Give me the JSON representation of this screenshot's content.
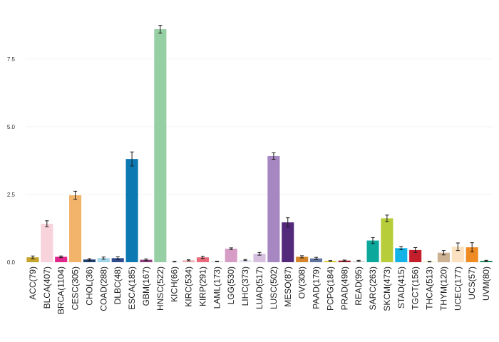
{
  "chart_data": {
    "type": "bar",
    "categories": [
      "ACC(79)",
      "BLCA(407)",
      "BRCA(1104)",
      "CESC(305)",
      "CHOL(36)",
      "COAD(288)",
      "DLBC(48)",
      "ESCA(185)",
      "GBM(167)",
      "HNSC(522)",
      "KICH(66)",
      "KIRC(534)",
      "KIRP(291)",
      "LAML(173)",
      "LGG(530)",
      "LIHC(373)",
      "LUAD(517)",
      "LUSC(502)",
      "MESO(87)",
      "OV(308)",
      "PAAD(179)",
      "PCPG(184)",
      "PRAD(498)",
      "READ(95)",
      "SARC(263)",
      "SKCM(473)",
      "STAD(415)",
      "TGCT(156)",
      "THCA(513)",
      "THYM(120)",
      "UCEC(177)",
      "UCS(57)",
      "UVM(80)"
    ],
    "values": [
      0.18,
      1.42,
      0.2,
      2.47,
      0.1,
      0.15,
      0.15,
      3.81,
      0.09,
      8.6,
      0.02,
      0.07,
      0.18,
      0.03,
      0.5,
      0.08,
      0.31,
      3.92,
      1.47,
      0.2,
      0.14,
      0.05,
      0.06,
      0.05,
      0.8,
      1.62,
      0.52,
      0.45,
      0.02,
      0.35,
      0.57,
      0.55,
      0.05
    ],
    "errors": [
      0.05,
      0.11,
      0.03,
      0.15,
      0.03,
      0.04,
      0.05,
      0.26,
      0.03,
      0.14,
      0.01,
      0.02,
      0.04,
      0.01,
      0.03,
      0.02,
      0.05,
      0.12,
      0.17,
      0.04,
      0.04,
      0.01,
      0.02,
      0.02,
      0.11,
      0.12,
      0.06,
      0.09,
      0.01,
      0.08,
      0.14,
      0.17,
      0.02
    ],
    "colors": [
      "#c5a42b",
      "#f8d3dc",
      "#e0268b",
      "#f2b46a",
      "#1f3f73",
      "#9fd4ea",
      "#2e4c8e",
      "#0c79b3",
      "#8b3d7d",
      "#97cfa4",
      "#ededed",
      "#f2b1b3",
      "#e96b7c",
      "#d4d4d4",
      "#d69ec7",
      "#e6e6f2",
      "#d6bfdf",
      "#a787c1",
      "#53297b",
      "#d6852a",
      "#63739f",
      "#dccd2c",
      "#991f2b",
      "#dcdcdc",
      "#0ca89b",
      "#b8cd3a",
      "#12b3e7",
      "#c41d2b",
      "#f4ed8a",
      "#cdb193",
      "#fbe1bf",
      "#f08b23",
      "#0f8a56"
    ],
    "yticks": [
      0.0,
      2.5,
      5.0,
      7.5
    ],
    "ytick_labels": [
      "0.0",
      "2.5",
      "5.0",
      "7.5"
    ],
    "ylim": [
      0,
      9.1
    ],
    "grid": true,
    "xlabel": "",
    "ylabel": "",
    "title": ""
  }
}
